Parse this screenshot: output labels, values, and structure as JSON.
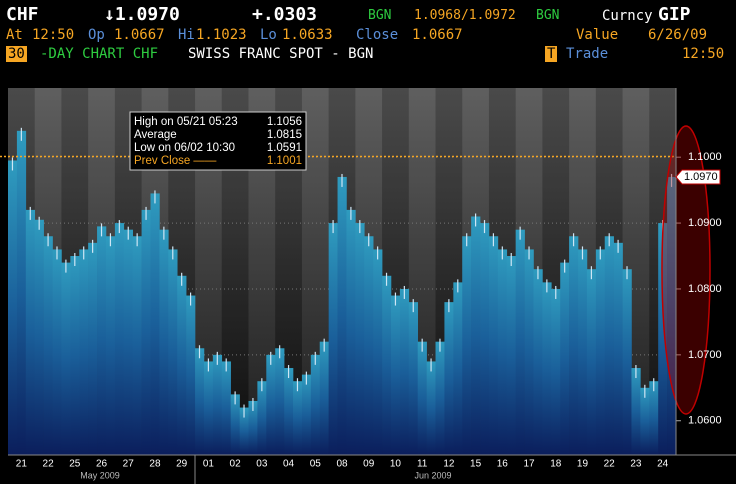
{
  "header": {
    "ticker": "CHF",
    "price": "↓1.0970",
    "change": "+.0303",
    "src1": "BGN",
    "bid_ask": "1.0968/1.0972",
    "src2": "BGN",
    "market": "Curncy",
    "function": "GIP",
    "at_label": "At",
    "at_value": "12:50",
    "open_label": "Op",
    "open_value": "1.0667",
    "high_label": "Hi",
    "high_value": "1.1023",
    "low_label": "Lo",
    "low_value": "1.0633",
    "close_label": "Close",
    "close_value": "1.0667",
    "value_label": "Value",
    "date": "6/26/09",
    "period": "30",
    "chart_kind": "-DAY CHART CHF",
    "security": "SWISS FRANC SPOT - BGN",
    "menu_key": "T",
    "trade": "Trade",
    "time": "12:50"
  },
  "chart_data": {
    "type": "bar",
    "categories": [
      null,
      "21",
      null,
      null,
      "22",
      null,
      null,
      "25",
      null,
      null,
      "26",
      null,
      null,
      "27",
      null,
      null,
      "28",
      null,
      null,
      "29",
      null,
      null,
      "01",
      null,
      null,
      "02",
      null,
      null,
      "03",
      null,
      null,
      "04",
      null,
      null,
      "05",
      null,
      null,
      "08",
      null,
      null,
      "09",
      null,
      null,
      "10",
      null,
      null,
      "11",
      null,
      null,
      "12",
      null,
      null,
      "15",
      null,
      null,
      "16",
      null,
      null,
      "17",
      null,
      null,
      "18",
      null,
      null,
      "19",
      null,
      null,
      "22",
      null,
      null,
      "23",
      null,
      null,
      "24",
      null
    ],
    "values": [
      1.0995,
      1.104,
      1.092,
      1.0905,
      1.088,
      1.086,
      1.084,
      1.085,
      1.086,
      1.087,
      1.0895,
      1.088,
      1.09,
      1.089,
      1.088,
      1.092,
      1.0945,
      1.089,
      1.086,
      1.082,
      1.079,
      1.071,
      1.069,
      1.07,
      1.069,
      1.064,
      1.062,
      1.063,
      1.066,
      1.07,
      1.071,
      1.068,
      1.066,
      1.067,
      1.07,
      1.072,
      1.09,
      1.097,
      1.092,
      1.09,
      1.088,
      1.086,
      1.082,
      1.079,
      1.08,
      1.078,
      1.072,
      1.069,
      1.072,
      1.078,
      1.081,
      1.088,
      1.091,
      1.09,
      1.088,
      1.086,
      1.085,
      1.089,
      1.086,
      1.083,
      1.081,
      1.08,
      1.084,
      1.088,
      1.086,
      1.083,
      1.086,
      1.088,
      1.087,
      1.083,
      1.068,
      1.065,
      1.066,
      1.09,
      1.097
    ],
    "months": [
      "May 2009",
      "Jun 2009"
    ],
    "ylim": [
      1.0548,
      1.1105
    ],
    "yticks": [
      {
        "value": 1.06,
        "label": "1.0600"
      },
      {
        "value": 1.07,
        "label": "1.0700"
      },
      {
        "value": 1.08,
        "label": "1.0800"
      },
      {
        "value": 1.09,
        "label": "1.0900"
      },
      {
        "value": 1.1,
        "label": "1.1000"
      }
    ],
    "last": {
      "value": 1.097,
      "label": "1.0970"
    },
    "stats": [
      {
        "label": "High on 05/21 05:23",
        "value": 1.1056
      },
      {
        "label": "Average",
        "value": 1.0815
      },
      {
        "label": "Low on 06/02 10:30",
        "value": 1.0591
      },
      {
        "label": "Prev Close ——",
        "value": 1.1001
      }
    ],
    "color": "#2f9cbf",
    "prev_close_color": "#f6a623"
  }
}
